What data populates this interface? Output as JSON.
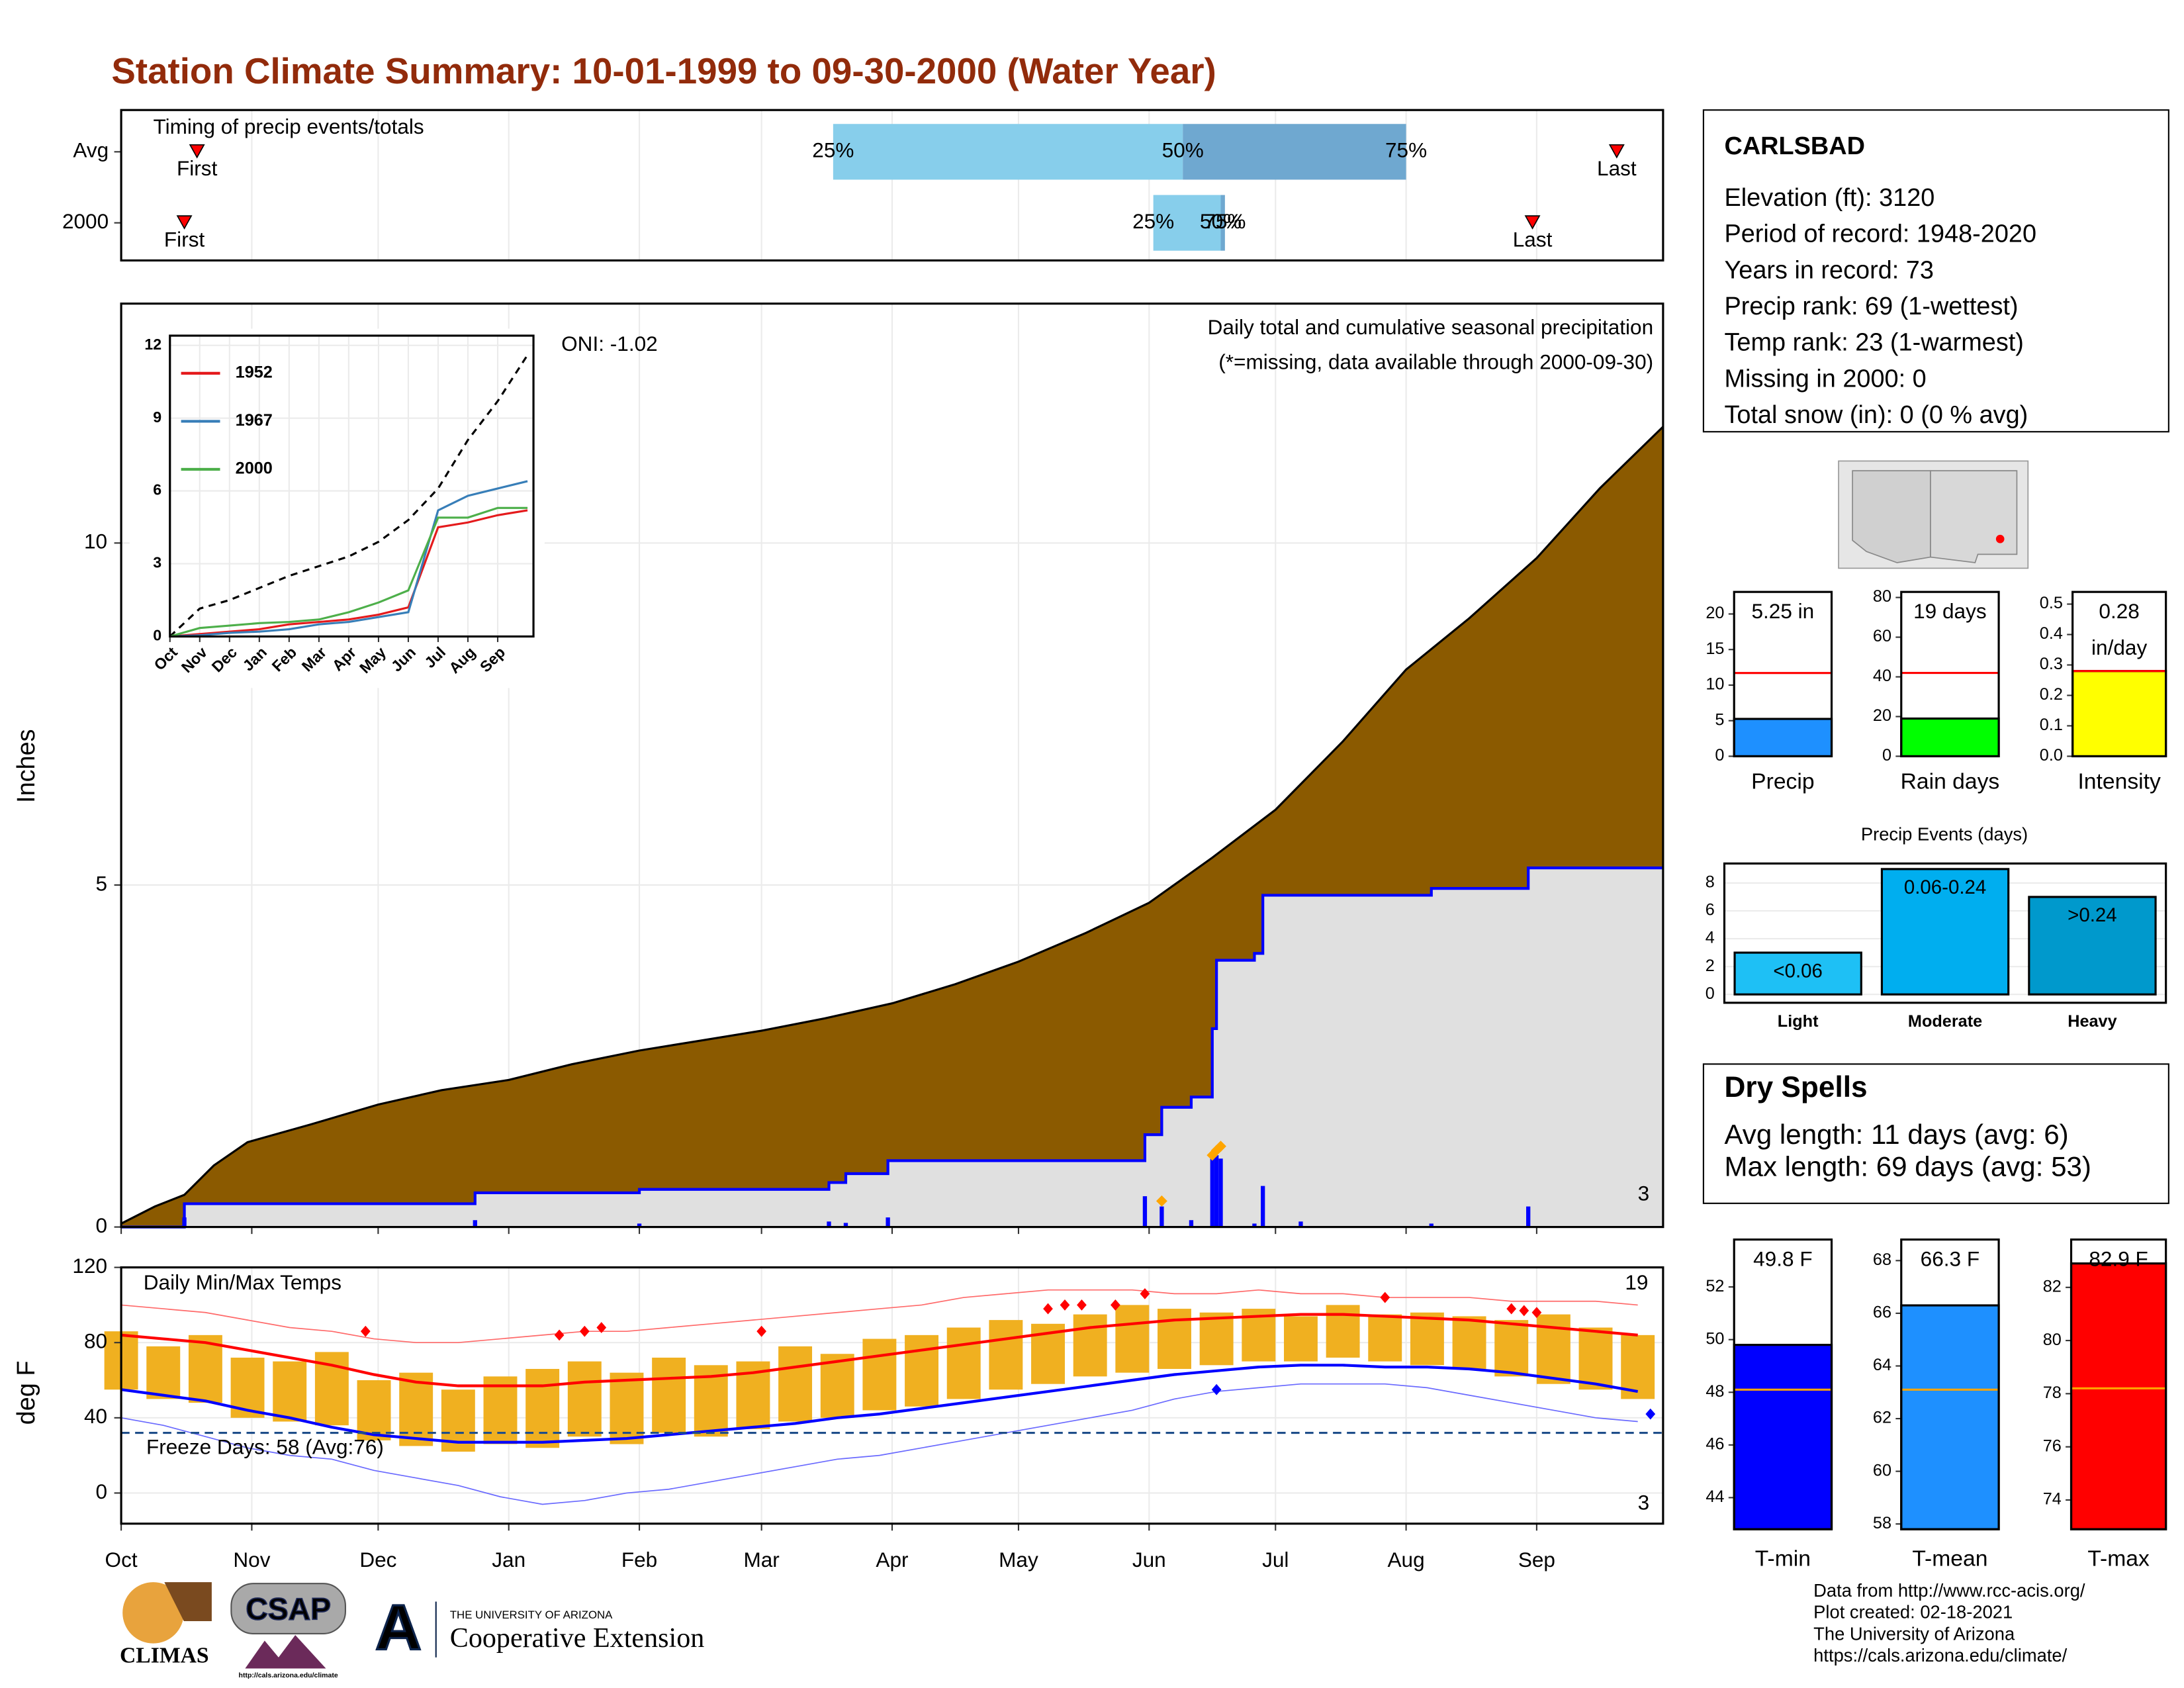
{
  "title": "Station Climate Summary: 10-01-1999 to 09-30-2000 (Water Year)",
  "chart_data": [
    {
      "type": "timing",
      "title": "Timing of precip events/totals",
      "rows": [
        {
          "name": "Avg",
          "first": 18,
          "p25": 169,
          "p50": 252,
          "p75": 305,
          "last": 355
        },
        {
          "name": "2000",
          "first": 15,
          "p25": 245,
          "p50": 261,
          "p75": 262,
          "last": 335
        }
      ],
      "labels": {
        "first": "First",
        "last": "Last",
        "p25": "25%",
        "p50": "50%",
        "p75": "75%"
      },
      "colors": [
        "#87ceeb",
        "#6fa8d0"
      ],
      "marker_color": "#ff0000"
    },
    {
      "type": "area",
      "y_label": "Inches",
      "ylim": [
        0,
        13.5
      ],
      "yticks": [
        0,
        5,
        10
      ],
      "grid": true,
      "annotation": "Daily total and cumulative seasonal precipitation",
      "note": "(*=missing, data available through 2000-09-30)",
      "oni": "ONI: -1.02",
      "corner_count": "3",
      "average_cumulative": {
        "color": "#8b5a00",
        "x": [
          0,
          8,
          15,
          22,
          30,
          45,
          61,
          76,
          92,
          107,
          123,
          137,
          152,
          167,
          183,
          198,
          213,
          229,
          244,
          259,
          274,
          290,
          305,
          320,
          336,
          351,
          366
        ],
        "values": [
          0.05,
          0.3,
          0.47,
          0.9,
          1.24,
          1.5,
          1.79,
          2.0,
          2.15,
          2.38,
          2.58,
          2.72,
          2.87,
          3.05,
          3.27,
          3.55,
          3.88,
          4.3,
          4.74,
          5.4,
          6.1,
          7.1,
          8.15,
          8.9,
          9.78,
          10.8,
          11.7
        ]
      },
      "cumulative_2000": {
        "color": "#0000ff",
        "fill": "#e0e0e0",
        "x": [
          0,
          15,
          15,
          84,
          84,
          123,
          123,
          168,
          168,
          172,
          172,
          182,
          182,
          243,
          243,
          247,
          247,
          254,
          254,
          259,
          259,
          260,
          260,
          269,
          269,
          271,
          271,
          311,
          311,
          334,
          334,
          366
        ],
        "values": [
          0,
          0,
          0.34,
          0.34,
          0.5,
          0.5,
          0.55,
          0.55,
          0.65,
          0.65,
          0.78,
          0.78,
          0.97,
          0.97,
          1.35,
          1.35,
          1.75,
          1.75,
          1.9,
          1.9,
          2.9,
          2.9,
          3.9,
          3.9,
          4.0,
          4.0,
          4.85,
          4.85,
          4.95,
          4.95,
          5.25,
          5.25
        ]
      },
      "daily": {
        "color": "#0000ff",
        "x": [
          15,
          84,
          123,
          168,
          172,
          182,
          243,
          247,
          254,
          259,
          260,
          261,
          269,
          271,
          280,
          311,
          334
        ],
        "values": [
          0.14,
          0.1,
          0.05,
          0.08,
          0.06,
          0.14,
          0.45,
          0.3,
          0.1,
          1.0,
          1.05,
          1.0,
          0.05,
          0.6,
          0.08,
          0.05,
          0.3
        ]
      },
      "flagged": {
        "color": "#ffa500",
        "x": [
          247,
          259,
          260,
          261
        ],
        "values": [
          0.38,
          1.05,
          1.12,
          1.18
        ]
      }
    },
    {
      "type": "line",
      "xlim": [
        0,
        12.2
      ],
      "xticks": [
        {
          "value": 0,
          "label": "Oct"
        },
        {
          "value": 1,
          "label": "Nov"
        },
        {
          "value": 2,
          "label": "Dec"
        },
        {
          "value": 3,
          "label": "Jan"
        },
        {
          "value": 4,
          "label": "Feb"
        },
        {
          "value": 5,
          "label": "Mar"
        },
        {
          "value": 6,
          "label": "Apr"
        },
        {
          "value": 7,
          "label": "May"
        },
        {
          "value": 8,
          "label": "Jun"
        },
        {
          "value": 9,
          "label": "Jul"
        },
        {
          "value": 10,
          "label": "Aug"
        },
        {
          "value": 11,
          "label": "Sep"
        }
      ],
      "ylim": [
        0,
        12.4
      ],
      "yticks": [
        0,
        3,
        6,
        9,
        12
      ],
      "x": [
        0,
        1,
        2,
        3,
        4,
        5,
        6,
        7,
        8,
        9,
        10,
        11,
        12
      ],
      "series": [
        {
          "name": "1952",
          "color": "#e41a1c",
          "values": [
            0,
            0.1,
            0.2,
            0.3,
            0.5,
            0.6,
            0.7,
            0.9,
            1.2,
            4.5,
            4.7,
            5.0,
            5.2
          ]
        },
        {
          "name": "1967",
          "color": "#377eb8",
          "values": [
            0,
            0.05,
            0.15,
            0.2,
            0.3,
            0.5,
            0.6,
            0.8,
            1.0,
            5.2,
            5.8,
            6.1,
            6.4
          ]
        },
        {
          "name": "2000",
          "color": "#4daf4a",
          "values": [
            0,
            0.35,
            0.45,
            0.55,
            0.6,
            0.7,
            1.0,
            1.4,
            1.9,
            4.9,
            4.9,
            5.3,
            5.3
          ]
        }
      ],
      "reference": {
        "color": "#000000",
        "values": [
          0,
          1.15,
          1.5,
          2.0,
          2.5,
          2.9,
          3.3,
          3.9,
          4.8,
          6.1,
          8.1,
          9.7,
          11.6
        ]
      }
    },
    {
      "type": "temps",
      "title": "Daily Min/Max Temps",
      "y_label": "deg F",
      "xlim": [
        0,
        366
      ],
      "xticks": [
        {
          "value": 0,
          "label": "Oct"
        },
        {
          "value": 31,
          "label": "Nov"
        },
        {
          "value": 61,
          "label": "Dec"
        },
        {
          "value": 92,
          "label": "Jan"
        },
        {
          "value": 123,
          "label": "Feb"
        },
        {
          "value": 152,
          "label": "Mar"
        },
        {
          "value": 183,
          "label": "Apr"
        },
        {
          "value": 213,
          "label": "May"
        },
        {
          "value": 244,
          "label": "Jun"
        },
        {
          "value": 274,
          "label": "Jul"
        },
        {
          "value": 305,
          "label": "Aug"
        },
        {
          "value": 336,
          "label": "Sep"
        }
      ],
      "ylim": [
        -16.3,
        120
      ],
      "yticks": [
        0,
        40,
        80,
        120
      ],
      "grid": true,
      "freeze_line": 32,
      "freeze_label": "Freeze Days: 58 (Avg:76)",
      "high_count": "19",
      "low_count": "3",
      "x": [
        0,
        10,
        20,
        30,
        40,
        50,
        60,
        70,
        80,
        90,
        100,
        110,
        120,
        130,
        140,
        150,
        160,
        170,
        180,
        190,
        200,
        210,
        220,
        230,
        240,
        250,
        260,
        270,
        280,
        290,
        300,
        310,
        320,
        330,
        340,
        350,
        360
      ],
      "obs_max": [
        86,
        78,
        84,
        72,
        70,
        75,
        60,
        64,
        55,
        62,
        66,
        70,
        64,
        72,
        68,
        70,
        78,
        74,
        82,
        84,
        88,
        92,
        90,
        95,
        100,
        98,
        96,
        98,
        94,
        100,
        95,
        96,
        94,
        92,
        95,
        88,
        84
      ],
      "obs_min": [
        55,
        50,
        48,
        40,
        38,
        36,
        28,
        25,
        22,
        26,
        24,
        30,
        26,
        32,
        30,
        34,
        38,
        40,
        44,
        46,
        50,
        55,
        58,
        62,
        64,
        66,
        68,
        70,
        70,
        72,
        70,
        68,
        66,
        62,
        58,
        55,
        50
      ],
      "obs_color": "#f0b020",
      "series": [
        {
          "color": "#ff0000",
          "values": [
            84,
            82,
            80,
            76,
            72,
            68,
            63,
            59,
            57,
            57,
            57,
            59,
            60,
            61,
            62,
            64,
            67,
            70,
            73,
            76,
            79,
            82,
            85,
            88,
            90,
            92,
            93,
            94,
            95,
            95,
            94,
            93,
            92,
            90,
            88,
            86,
            84
          ]
        },
        {
          "color": "#0000ff",
          "values": [
            55,
            52,
            49,
            44,
            40,
            35,
            31,
            29,
            27,
            27,
            27,
            28,
            29,
            31,
            33,
            35,
            37,
            40,
            42,
            45,
            48,
            51,
            54,
            57,
            60,
            63,
            65,
            67,
            68,
            68,
            67,
            67,
            66,
            64,
            61,
            58,
            54
          ]
        },
        {
          "color": "#ff6a6a",
          "values": [
            100,
            98,
            96,
            92,
            88,
            86,
            82,
            80,
            80,
            82,
            84,
            86,
            86,
            88,
            90,
            92,
            94,
            96,
            98,
            100,
            104,
            106,
            108,
            108,
            108,
            106,
            106,
            108,
            106,
            106,
            104,
            104,
            104,
            102,
            102,
            102,
            100
          ]
        },
        {
          "color": "#6a6aff",
          "values": [
            40,
            36,
            30,
            24,
            20,
            18,
            12,
            8,
            4,
            -2,
            -6,
            -4,
            0,
            2,
            6,
            10,
            14,
            18,
            20,
            24,
            28,
            32,
            36,
            40,
            44,
            50,
            54,
            56,
            58,
            58,
            58,
            56,
            52,
            48,
            44,
            40,
            38
          ]
        }
      ],
      "record_highs": {
        "color": "#ff0000",
        "x": [
          58,
          104,
          110,
          114,
          152,
          220,
          224,
          228,
          236,
          243,
          300,
          330,
          333,
          336
        ],
        "values": [
          86,
          84,
          86,
          88,
          86,
          98,
          100,
          100,
          100,
          106,
          104,
          98,
          97,
          96
        ]
      },
      "record_lows": {
        "color": "#0000ff",
        "x": [
          260,
          363
        ],
        "values": [
          55,
          42
        ]
      }
    },
    {
      "type": "bar",
      "categories": [
        "Precip"
      ],
      "values": [
        5.25
      ],
      "value_labels": [
        "5.25 in"
      ],
      "average": 11.7,
      "average_color": "#ff0000",
      "color": "#1e90ff",
      "ylim": [
        0,
        23.1
      ],
      "yticks": [
        0,
        5,
        10,
        15,
        20
      ]
    },
    {
      "type": "bar",
      "categories": [
        "Rain days"
      ],
      "values": [
        19
      ],
      "value_labels": [
        "19 days"
      ],
      "average": 42,
      "average_color": "#ff0000",
      "color": "#00ff00",
      "ylim": [
        0,
        82.8
      ],
      "yticks": [
        0,
        20,
        40,
        60,
        80
      ]
    },
    {
      "type": "bar",
      "categories": [
        "Intensity"
      ],
      "values": [
        0.28
      ],
      "value_labels": [
        "0.28 in/day"
      ],
      "average": 0.28,
      "average_color": "#ff0000",
      "color": "#ffff00",
      "ylim": [
        0,
        0.54
      ],
      "yticks": [
        {
          "value": 0,
          "label": "0.0"
        },
        0.1,
        0.2,
        0.3,
        0.4,
        0.5
      ]
    },
    {
      "type": "events",
      "title": "Precip Events (days)",
      "categories": [
        "Light",
        "Moderate",
        "Heavy"
      ],
      "values": [
        3,
        9,
        7
      ],
      "value_labels": [
        "<0.06",
        "0.06-0.24",
        ">0.24"
      ],
      "colors": [
        "#1ec0f5",
        "#00aeef",
        "#0099cc"
      ],
      "ylim": [
        -0.6,
        9.4
      ],
      "yticks": [
        0,
        2,
        4,
        6,
        8
      ],
      "grid": true
    },
    {
      "type": "bar",
      "categories": [
        "T-min"
      ],
      "values": [
        49.8
      ],
      "value_labels": [
        "49.8 F"
      ],
      "average": 48.1,
      "average_color": "#ffa500",
      "color": "#0000ff",
      "ylim": [
        42.8,
        53.8
      ],
      "yticks": [
        44,
        46,
        48,
        50,
        52
      ]
    },
    {
      "type": "bar",
      "categories": [
        "T-mean"
      ],
      "values": [
        66.3
      ],
      "value_labels": [
        "66.3 F"
      ],
      "average": 63.1,
      "average_color": "#ffa500",
      "color": "#1e90ff",
      "ylim": [
        57.8,
        68.8
      ],
      "yticks": [
        58,
        60,
        62,
        64,
        66,
        68
      ]
    },
    {
      "type": "bar",
      "categories": [
        "T-max"
      ],
      "values": [
        82.9
      ],
      "value_labels": [
        "82.9 F"
      ],
      "average": 78.2,
      "average_color": "#ffa500",
      "color": "#ff0000",
      "ylim": [
        72.9,
        83.8
      ],
      "yticks": [
        74,
        76,
        78,
        80,
        82
      ]
    }
  ],
  "station": {
    "name": "CARLSBAD",
    "lines": [
      "Elevation (ft): 3120",
      "Period of record: 1948-2020",
      "Years in record: 73",
      "Precip rank: 69 (1-wettest)",
      "Temp rank: 23 (1-warmest)",
      "Missing in 2000: 0",
      "Total snow (in): 0 (0 % avg)"
    ]
  },
  "dry_spells": {
    "title": "Dry Spells",
    "lines": [
      "Avg length: 11 days (avg: 6)",
      "Max length: 69 days (avg: 53)"
    ]
  },
  "footer": {
    "credits": [
      "Data from http://www.rcc-acis.org/",
      "Plot created: 02-18-2021",
      "The University of Arizona",
      "https://cals.arizona.edu/climate/"
    ],
    "climas": "CLIMAS",
    "csap": "CSAP",
    "csap_url": "http://cals.arizona.edu/climate",
    "ua_letter": "A",
    "ua": "THE UNIVERSITY OF ARIZONA",
    "extension": "Cooperative Extension"
  }
}
